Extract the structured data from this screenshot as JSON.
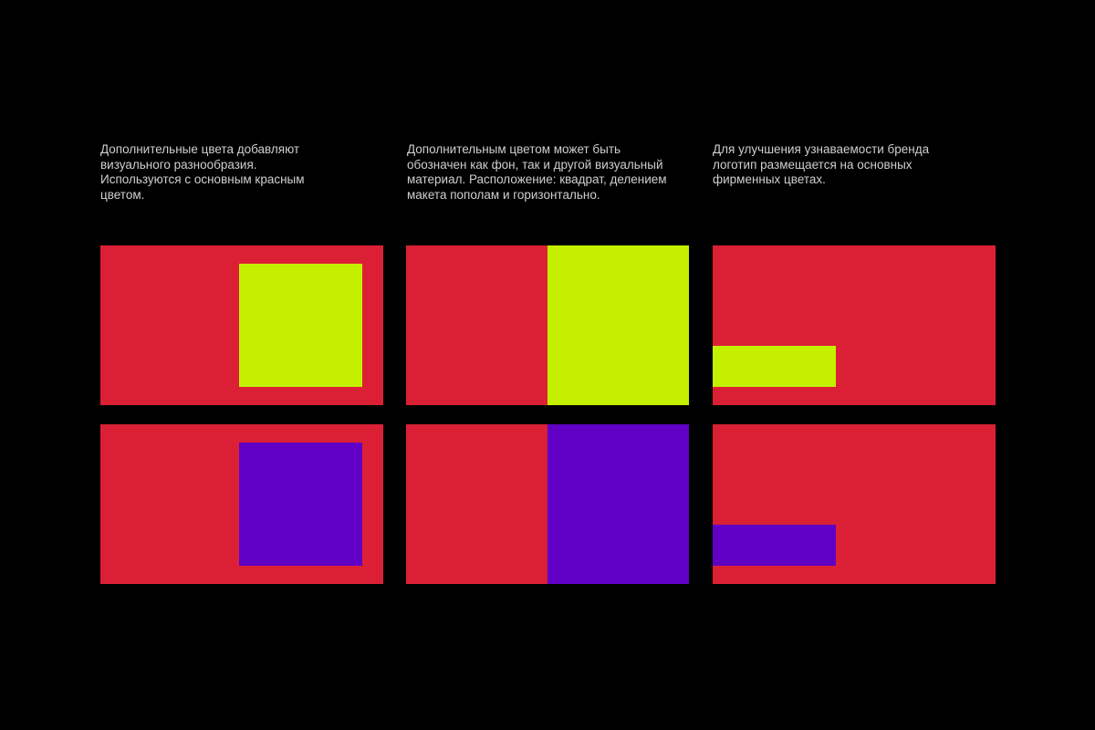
{
  "colors": {
    "background": "#000000",
    "primary_red": "#db2035",
    "accent_lime": "#c4f000",
    "accent_violet": "#5f00c4"
  },
  "captions": [
    "Дополнительные цвета добавляют\nвизуального разнообразия.\nИспользуются с основным красным\nцветом.",
    "Дополнительным цветом может быть\nобозначен как фон, так и другой визуальный\nматериал. Расположение: квадрат, делением\nмакета пополам и горизонтально.",
    "Для улучшения узнаваемости бренда\nлоготип размещается на основных\nфирменных цветах."
  ],
  "layouts": [
    "square",
    "half",
    "bar"
  ],
  "rows": [
    {
      "accent": "accent_lime"
    },
    {
      "accent": "accent_violet"
    }
  ]
}
